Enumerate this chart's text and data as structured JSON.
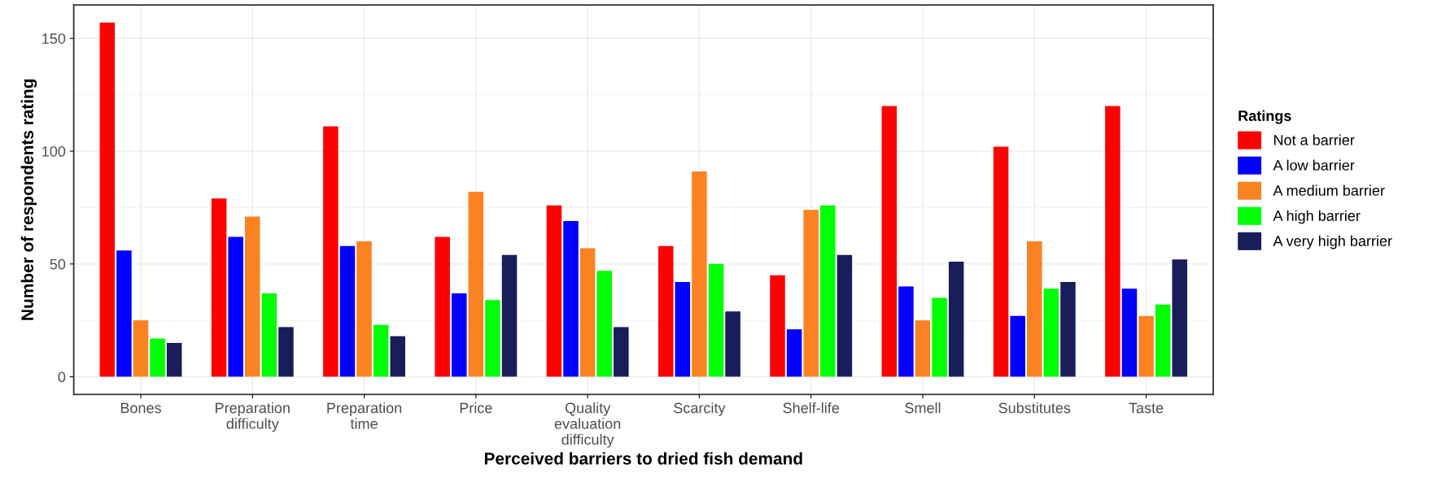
{
  "chart_data": {
    "type": "bar",
    "xlabel": "Perceived barriers to dried fish demand",
    "ylabel": "Number of respondents rating",
    "categories": [
      "Bones",
      "Preparation\ndifficulty",
      "Preparation\ntime",
      "Price",
      "Quality\nevaluation\ndifficulty",
      "Scarcity",
      "Shelf-life",
      "Smell",
      "Substitutes",
      "Taste"
    ],
    "series": [
      {
        "name": "Not a barrier",
        "color": "#ff0000",
        "values": [
          157,
          79,
          111,
          62,
          76,
          58,
          45,
          120,
          102,
          120
        ]
      },
      {
        "name": "A low barrier",
        "color": "#0000ff",
        "values": [
          56,
          62,
          58,
          37,
          69,
          42,
          21,
          40,
          27,
          39
        ]
      },
      {
        "name": "A medium barrier",
        "color": "#f98322",
        "values": [
          25,
          71,
          60,
          82,
          57,
          91,
          74,
          25,
          60,
          27
        ]
      },
      {
        "name": "A high barrier",
        "color": "#00ff00",
        "values": [
          17,
          37,
          23,
          34,
          47,
          50,
          76,
          35,
          39,
          32
        ]
      },
      {
        "name": "A very high barrier",
        "color": "#191d5a",
        "values": [
          15,
          22,
          18,
          54,
          22,
          29,
          54,
          51,
          42,
          52
        ]
      }
    ],
    "legend_title": "Ratings",
    "legend": "right",
    "grid": true,
    "ylim": [
      -7.85,
      164.85
    ],
    "yticks": [
      0,
      50,
      100,
      150
    ]
  }
}
